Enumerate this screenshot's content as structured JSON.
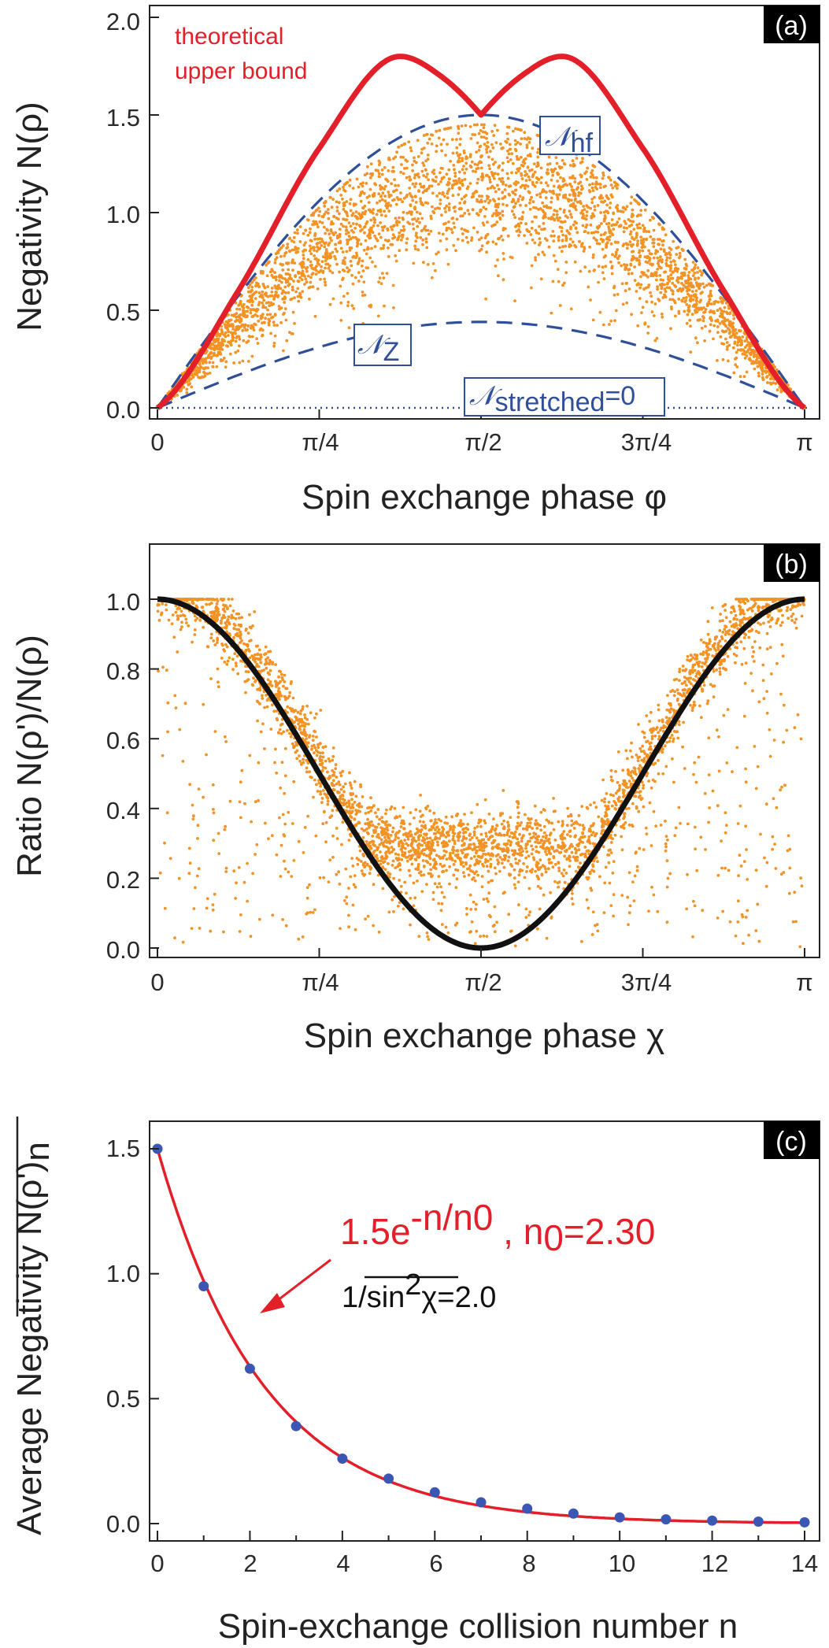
{
  "chart_data": [
    {
      "panel": "a",
      "type": "scatter",
      "tag": "(a)",
      "xlabel": "Spin exchange phase φ",
      "ylabel": "Negativity N(ρ)",
      "xticks": [
        "0",
        "π/4",
        "π/2",
        "3π/4",
        "π"
      ],
      "yticks": [
        "0.0",
        "0.5",
        "1.0",
        "1.5",
        "2.0"
      ],
      "xlim": [
        0,
        3.14159
      ],
      "ylim": [
        0,
        2.1
      ],
      "colors": {
        "bound": "#e3202a",
        "dashed": "#2f4f9a",
        "points": "#f39325"
      },
      "series": [
        {
          "name": "theoretical upper bound",
          "style": "solid-red",
          "x": [
            0,
            0.3927,
            0.7854,
            1.1781,
            1.3744,
            1.5708,
            1.7672,
            1.9635,
            2.3562,
            2.7489,
            3.1416
          ],
          "y": [
            0.0,
            0.6,
            1.33,
            1.8,
            1.7,
            1.5,
            1.7,
            1.8,
            1.33,
            0.6,
            0.0
          ]
        },
        {
          "name": "N_hf",
          "style": "dashed-blue",
          "formula": "1.5*sin(phi)"
        },
        {
          "name": "N_Z",
          "style": "dashed-blue",
          "formula": "0.44*sin(phi)"
        },
        {
          "name": "N_stretched=0",
          "style": "dotted-blue",
          "formula": "0"
        },
        {
          "name": "random states",
          "style": "orange-points",
          "count": 3500,
          "envelope": "1.45*sin(phi)"
        }
      ],
      "annotations": {
        "bound_line1": "theoretical",
        "bound_line2": "upper bound",
        "hf_script": "𝒩",
        "hf_sub": "hf",
        "z_script": "𝒩",
        "z_sub": "Z",
        "stretched_script": "𝒩",
        "stretched_sub": "stretched",
        "stretched_eq": "=0"
      }
    },
    {
      "panel": "b",
      "type": "scatter",
      "tag": "(b)",
      "xlabel": "Spin exchange phase χ",
      "ylabel": "Ratio  N(ρ')/N(ρ)",
      "xticks": [
        "0",
        "π/4",
        "π/2",
        "3π/4",
        "π"
      ],
      "yticks": [
        "0.0",
        "0.2",
        "0.4",
        "0.6",
        "0.8",
        "1.0"
      ],
      "xlim": [
        0,
        3.14159
      ],
      "ylim": [
        0,
        1.13
      ],
      "series": [
        {
          "name": "cos^2 chi",
          "style": "solid-black",
          "formula": "cos(chi)^2"
        },
        {
          "name": "random states",
          "style": "orange-points",
          "count": 3500
        }
      ]
    },
    {
      "panel": "c",
      "type": "scatter",
      "tag": "(c)",
      "xlabel": "Spin-exchange collision number n",
      "ylabel": "Average Negativity N(ρ')",
      "ylabel_sub": "n",
      "xticks": [
        "0",
        "2",
        "4",
        "6",
        "8",
        "10",
        "12",
        "14"
      ],
      "yticks": [
        "0.0",
        "0.5",
        "1.0",
        "1.5"
      ],
      "xlim": [
        -0.3,
        14.4
      ],
      "ylim": [
        -0.05,
        1.6
      ],
      "series": [
        {
          "name": "average negativity",
          "style": "blue-dots",
          "x": [
            0,
            1,
            2,
            3,
            4,
            5,
            6,
            7,
            8,
            9,
            10,
            11,
            12,
            13,
            14
          ],
          "y": [
            1.5,
            0.95,
            0.62,
            0.39,
            0.26,
            0.18,
            0.125,
            0.085,
            0.06,
            0.04,
            0.025,
            0.017,
            0.012,
            0.008,
            0.005
          ]
        },
        {
          "name": "fit",
          "style": "solid-red",
          "amplitude": 1.5,
          "n0": 2.3
        }
      ],
      "annotations": {
        "fit_base": "1.5e",
        "fit_exp": "-n/n0",
        "fit_sep": " , n",
        "fit_sub": "0",
        "fit_val": "=2.30",
        "sin_prefix": "1/",
        "sin_word": "sin",
        "sin_exp": "2",
        "sin_var": "χ",
        "sin_val": "=2.0"
      }
    }
  ]
}
